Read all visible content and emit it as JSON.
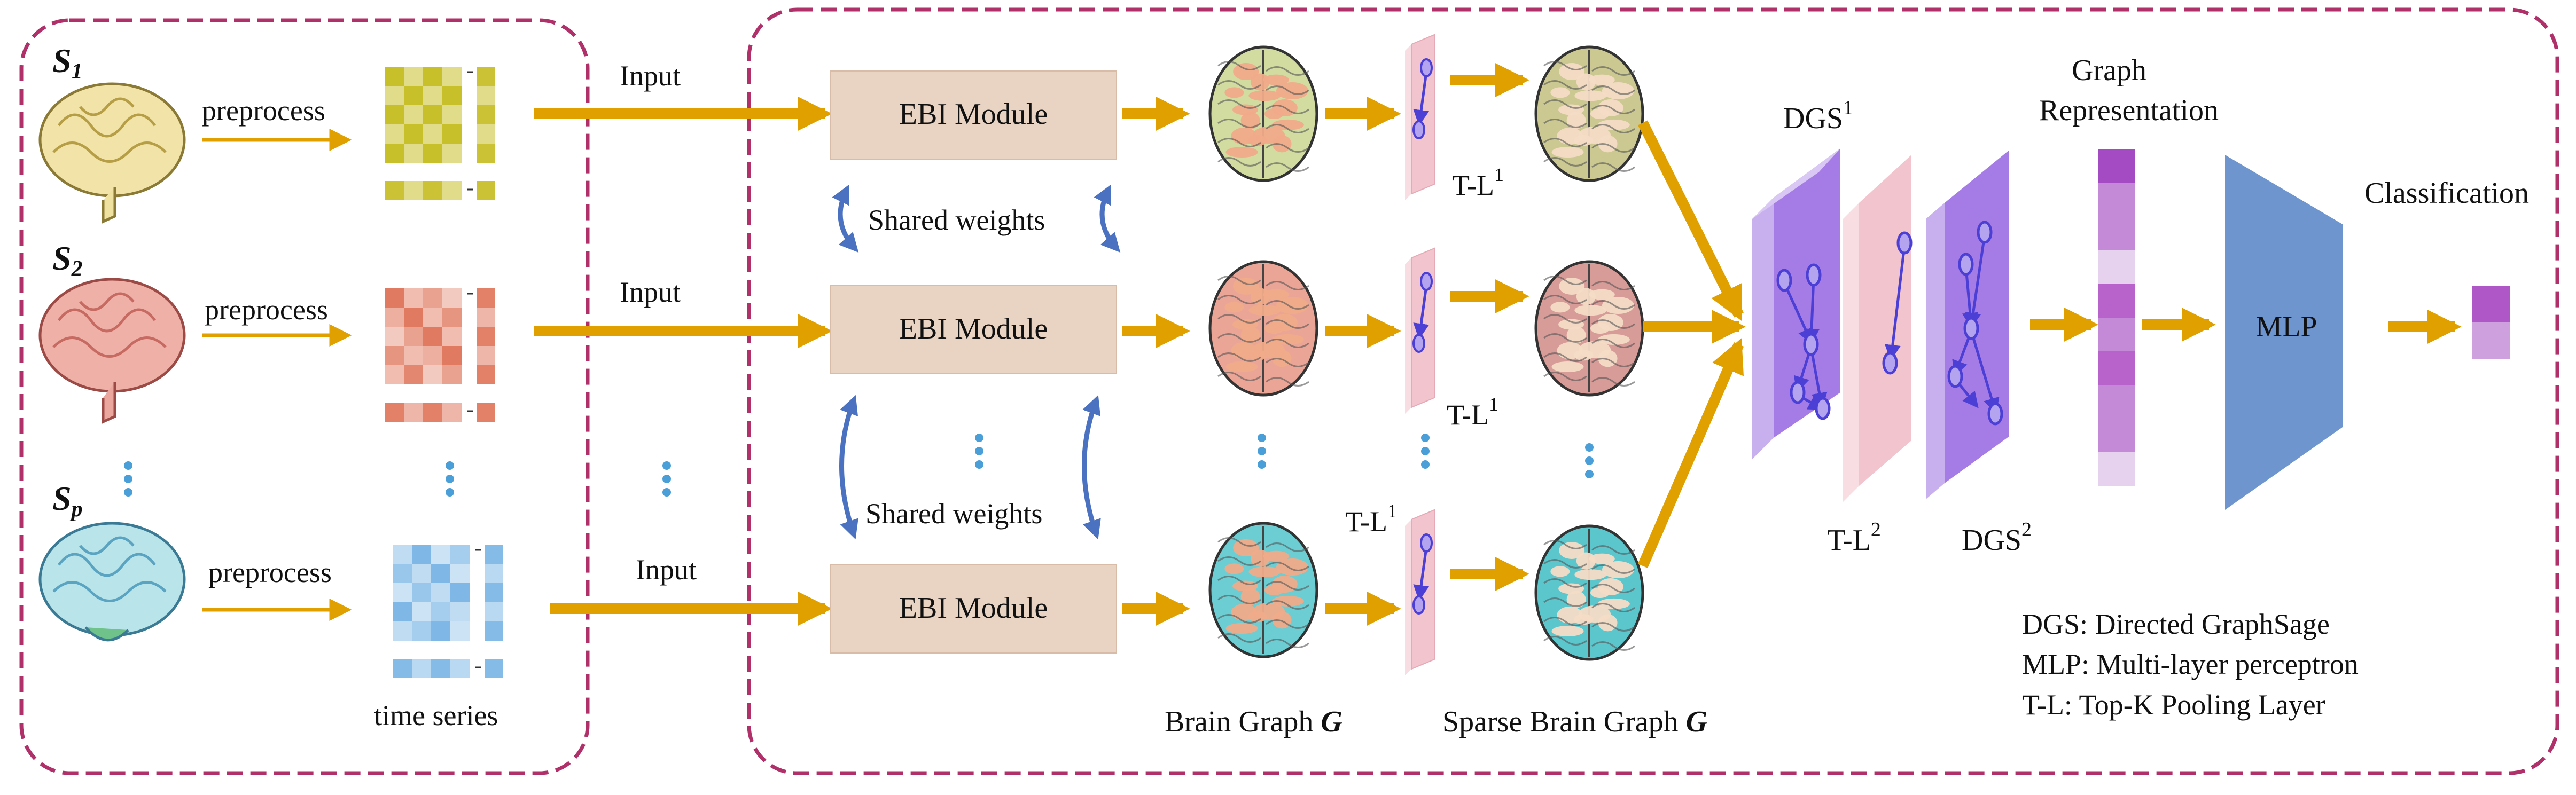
{
  "subjects": [
    {
      "name": "S",
      "sub": "1"
    },
    {
      "name": "S",
      "sub": "2"
    },
    {
      "name": "S",
      "sub": "p"
    }
  ],
  "preprocess_label": "preprocess",
  "time_series_label": "time series",
  "input_label": "Input",
  "ebi_module_label": "EBI Module",
  "shared_weights_label": "Shared weights",
  "tl": {
    "text": "T-L",
    "sup1": "1",
    "sup2": "2"
  },
  "dgs": {
    "text": "DGS",
    "sup1": "1",
    "sup2": "2"
  },
  "brain_graph_label": {
    "text": "Brain Graph ",
    "symbol": "G"
  },
  "sparse_brain_graph_label": {
    "text": "Sparse Brain Graph ",
    "symbol": "G"
  },
  "graph_representation_label": {
    "line1": "Graph",
    "line2": "Representation"
  },
  "mlp_label": "MLP",
  "classification_label": "Classification",
  "legend": [
    "DGS: Directed GraphSage",
    "MLP: Multi-layer perceptron",
    "T-L: Top-K Pooling Layer"
  ],
  "colors": {
    "dashed_border": "#b0306a",
    "arrow": "#e0a000",
    "ebi_box": "#e9d3c3",
    "shared_arrow": "#4a72c0",
    "dgs_face": "#a57ce6",
    "dgs_side": "#c8b0ee",
    "tl_face": "#f2c4cd",
    "mlp": "#6f95cf",
    "ellipsis_dots": "#4a9fd8",
    "row1_matrix": "#c8c02a",
    "row2_matrix": "#e07a60",
    "row3_matrix": "#7fb8e6"
  }
}
